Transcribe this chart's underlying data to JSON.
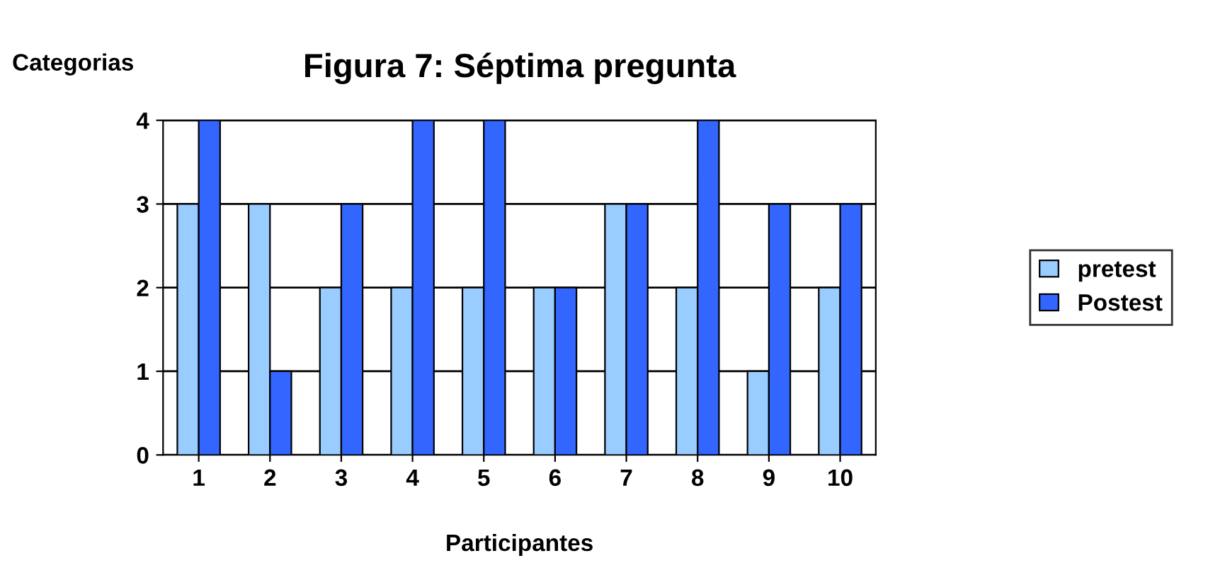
{
  "chart_data": {
    "type": "bar",
    "title": "Figura 7: Séptima pregunta",
    "ylabel": "Categorias",
    "xlabel": "Participantes",
    "categories": [
      "1",
      "2",
      "3",
      "4",
      "5",
      "6",
      "7",
      "8",
      "9",
      "10"
    ],
    "series": [
      {
        "name": "pretest",
        "color": "#99ccff",
        "values": [
          3,
          3,
          2,
          2,
          2,
          2,
          3,
          2,
          1,
          2
        ]
      },
      {
        "name": "Postest",
        "color": "#3366ff",
        "values": [
          4,
          1,
          3,
          4,
          4,
          2,
          3,
          4,
          3,
          3
        ]
      }
    ],
    "ylim": [
      0,
      4
    ],
    "yticks": [
      0,
      1,
      2,
      3,
      4
    ],
    "grid": "y",
    "legend": "right"
  }
}
